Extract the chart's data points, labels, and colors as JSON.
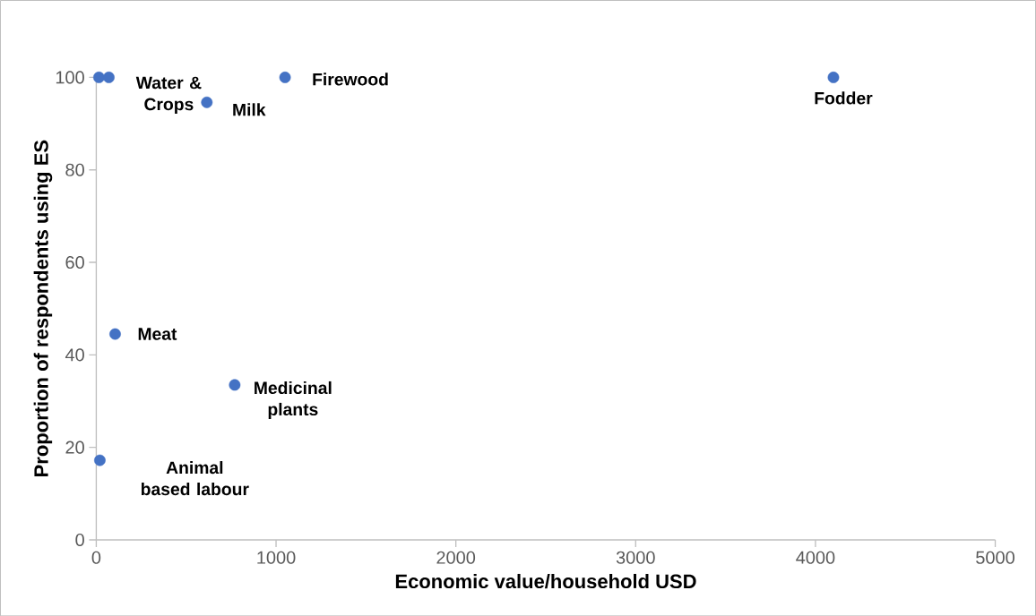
{
  "chart_data": {
    "type": "scatter",
    "xlabel": "Economic value/household USD",
    "ylabel": "Proportion of respondents using ES",
    "x": [
      15,
      70,
      615,
      1050,
      4100,
      105,
      770,
      20
    ],
    "values": [
      100,
      100,
      94.6,
      100,
      100,
      44.5,
      33.5,
      17.2
    ],
    "color": "#4472c4",
    "marker": "circle",
    "xlim": [
      0,
      5000
    ],
    "ylim": [
      0,
      100
    ],
    "xticks": [
      0,
      1000,
      2000,
      3000,
      4000,
      5000
    ],
    "yticks": [
      0,
      20,
      40,
      60,
      80,
      100
    ],
    "annotations": [
      {
        "text": "Water & Crops",
        "x": 70,
        "y": 100
      },
      {
        "text": "Milk",
        "x": 615,
        "y": 94.6
      },
      {
        "text": "Firewood",
        "x": 1050,
        "y": 100
      },
      {
        "text": "Fodder",
        "x": 4100,
        "y": 100
      },
      {
        "text": "Meat",
        "x": 105,
        "y": 44.5
      },
      {
        "text": "Medicinal plants",
        "x": 770,
        "y": 33.5
      },
      {
        "text": "Animal based labour",
        "x": 20,
        "y": 17.2
      }
    ]
  }
}
